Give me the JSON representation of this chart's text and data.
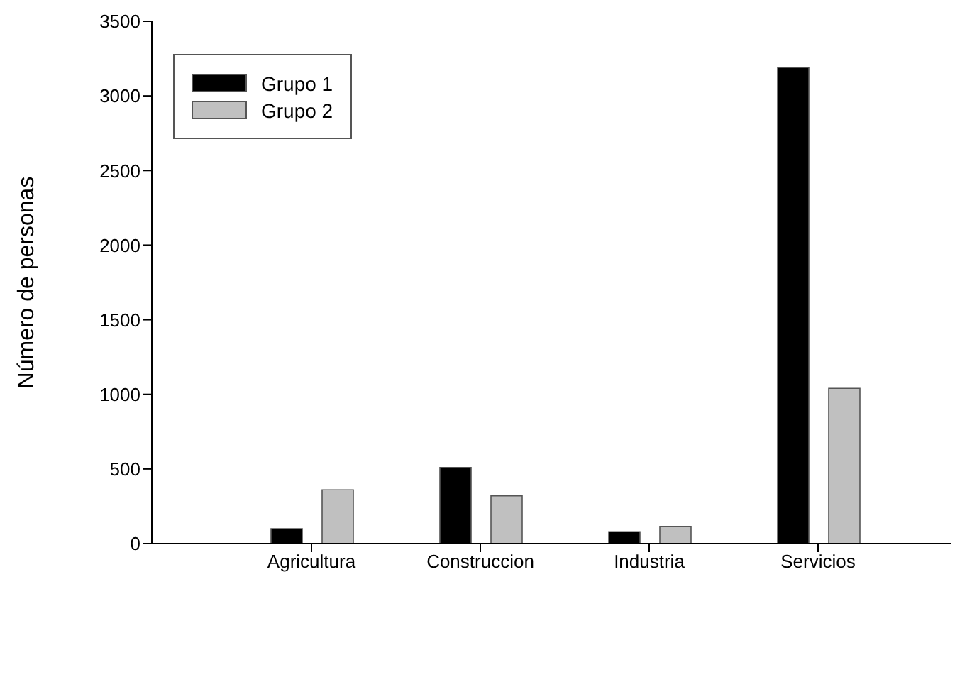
{
  "chart_data": {
    "type": "bar",
    "ylabel": "Número de personas",
    "categories": [
      "Agricultura",
      "Construccion",
      "Industria",
      "Servicios"
    ],
    "series": [
      {
        "name": "Grupo 1",
        "color": "#000000",
        "values": [
          100,
          510,
          80,
          3190
        ]
      },
      {
        "name": "Grupo 2",
        "color": "#c0c0c0",
        "values": [
          360,
          320,
          115,
          1040
        ]
      }
    ],
    "ylim": [
      0,
      3500
    ],
    "yticks": [
      0,
      500,
      1000,
      1500,
      2000,
      2500,
      3000,
      3500
    ],
    "grid": false,
    "legend": "top left"
  }
}
